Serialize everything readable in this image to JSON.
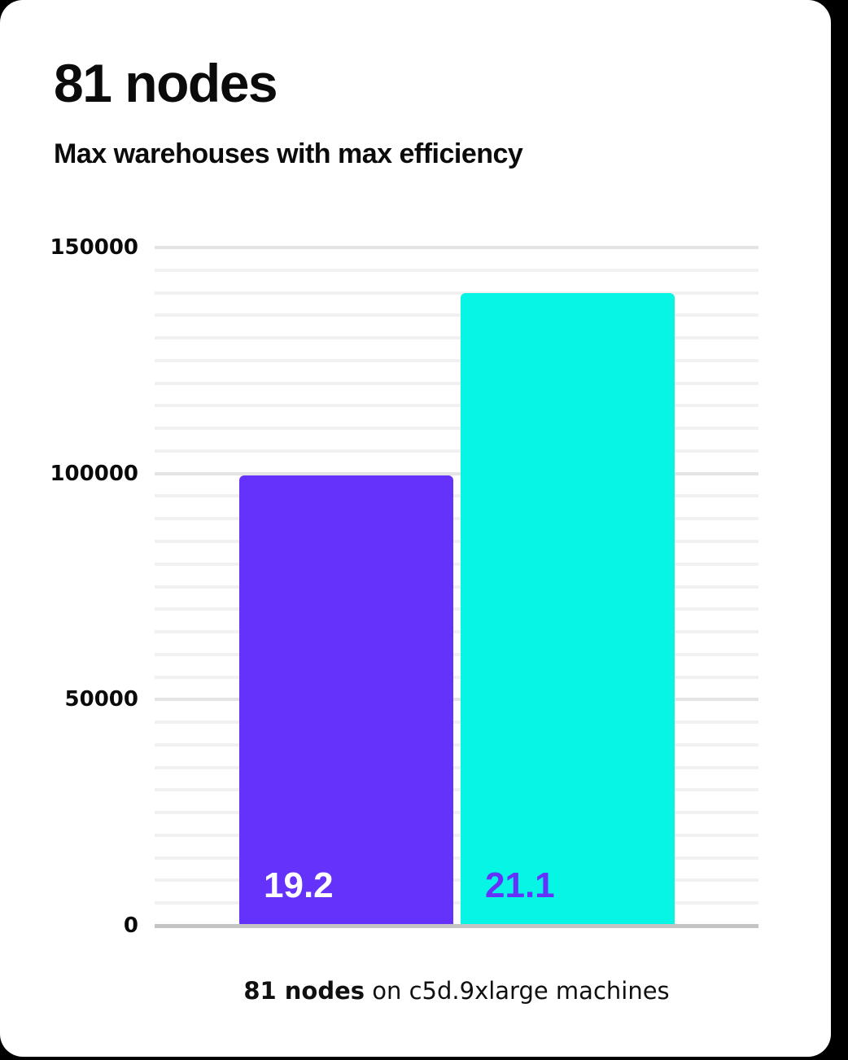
{
  "header": {
    "title": "81 nodes",
    "subtitle": "Max warehouses with max efficiency"
  },
  "caption": {
    "bold": "81 nodes",
    "rest": " on c5d.9xlarge machines"
  },
  "chart_data": {
    "type": "bar",
    "title": "81 nodes",
    "subtitle": "Max warehouses with max efficiency",
    "caption": "81 nodes on c5d.9xlarge machines",
    "ylim": [
      0,
      150000
    ],
    "yticks": [
      {
        "value": 0,
        "label": "0"
      },
      {
        "value": 50000,
        "label": "50000"
      },
      {
        "value": 100000,
        "label": "100000"
      },
      {
        "value": 150000,
        "label": "150000"
      }
    ],
    "minor_gridline_step": 5000,
    "grid": true,
    "legend": "none",
    "bars": [
      {
        "name": "bar-1",
        "value": 99500,
        "value_label": "19.2",
        "bar_color": "#6432FA",
        "label_color": "#FFFFFF"
      },
      {
        "name": "bar-2",
        "value": 140000,
        "value_label": "21.1",
        "bar_color": "#06F5E5",
        "label_color": "#6432FA"
      }
    ],
    "colors": {
      "card_background": "#FFFFFF",
      "outside_background": "#000000",
      "minor_gridline": "#F1F1F1",
      "major_gridline": "#E4E4E4",
      "axis_line": "#C4C4C4",
      "text": "#0B0B0B"
    }
  }
}
